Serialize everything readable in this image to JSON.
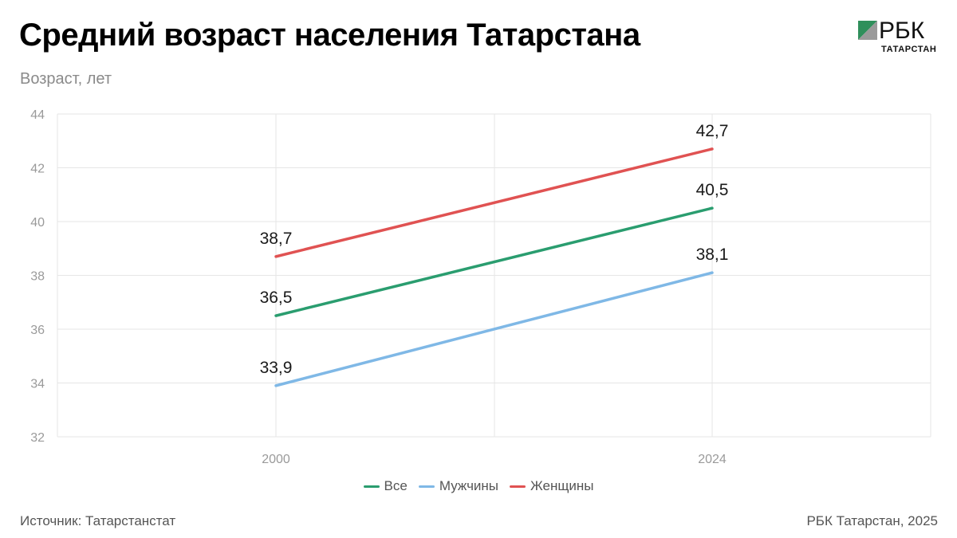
{
  "header": {
    "title": "Средний возраст населения Татарстана",
    "ylabel": "Возраст, лет"
  },
  "logo": {
    "name": "РБК",
    "sub": "ТАТАРСТАН"
  },
  "footer": {
    "source": "Источник: Татарстанстат",
    "credit": "РБК Татарстан, 2025"
  },
  "colors": {
    "all": "#2a9d6f",
    "men": "#7fb8e6",
    "women": "#e05252",
    "grid": "#e6e6e6",
    "logo_green": "#2f8f5b"
  },
  "chart_data": {
    "type": "line",
    "title": "Средний возраст населения Татарстана",
    "ylabel": "Возраст, лет",
    "xlabel": "",
    "x": [
      "2000",
      "2024"
    ],
    "ylim": [
      32,
      44
    ],
    "yticks": [
      32,
      34,
      36,
      38,
      40,
      42,
      44
    ],
    "grid": true,
    "legend": "bottom",
    "series": [
      {
        "name": "Все",
        "values": [
          36.5,
          40.5
        ],
        "labels": [
          "36,5",
          "40,5"
        ],
        "color": "#2a9d6f"
      },
      {
        "name": "Мужчины",
        "values": [
          33.9,
          38.1
        ],
        "labels": [
          "33,9",
          "38,1"
        ],
        "color": "#7fb8e6"
      },
      {
        "name": "Женщины",
        "values": [
          38.7,
          42.7
        ],
        "labels": [
          "38,7",
          "42,7"
        ],
        "color": "#e05252"
      }
    ]
  }
}
